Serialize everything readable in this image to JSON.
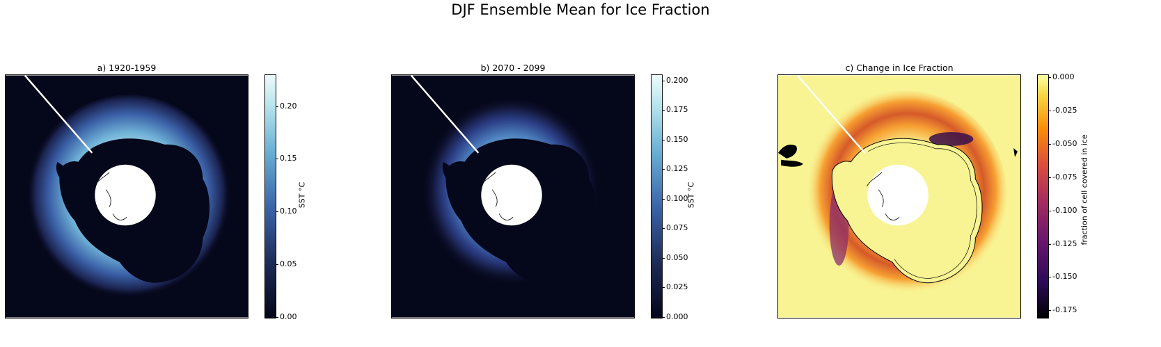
{
  "title": "DJF Ensemble Mean for Ice Fraction",
  "chart_data": [
    {
      "type": "heatmap",
      "title": "a) 1920-1959",
      "projection": "south polar stereographic",
      "colormap": "ice (dark navy to pale cyan)",
      "colorbar": {
        "label": "SST °C",
        "range": [
          0.0,
          0.23
        ],
        "ticks": [
          "0.00",
          "0.05",
          "0.10",
          "0.15",
          "0.20"
        ],
        "tick_values": [
          0.0,
          0.05,
          0.1,
          0.15,
          0.2
        ]
      }
    },
    {
      "type": "heatmap",
      "title": "b) 2070 - 2099",
      "projection": "south polar stereographic",
      "colormap": "ice (dark navy to pale cyan)",
      "colorbar": {
        "label": "SST °C",
        "range": [
          0.0,
          0.205
        ],
        "ticks": [
          "0.000",
          "0.025",
          "0.050",
          "0.075",
          "0.100",
          "0.125",
          "0.150",
          "0.175",
          "0.200"
        ],
        "tick_values": [
          0.0,
          0.025,
          0.05,
          0.075,
          0.1,
          0.125,
          0.15,
          0.175,
          0.2
        ]
      }
    },
    {
      "type": "heatmap",
      "title": "c) Change in Ice Fraction",
      "projection": "south polar stereographic",
      "colormap": "inferno (black to pale yellow)",
      "colorbar": {
        "label": "fraction of cell covered in ice",
        "range": [
          -0.18,
          0.002
        ],
        "ticks": [
          "0.000",
          "-0.025",
          "-0.050",
          "-0.075",
          "-0.100",
          "-0.125",
          "-0.150",
          "-0.175"
        ],
        "tick_values": [
          0.0,
          -0.025,
          -0.05,
          -0.075,
          -0.1,
          -0.125,
          -0.15,
          -0.175
        ]
      }
    }
  ]
}
